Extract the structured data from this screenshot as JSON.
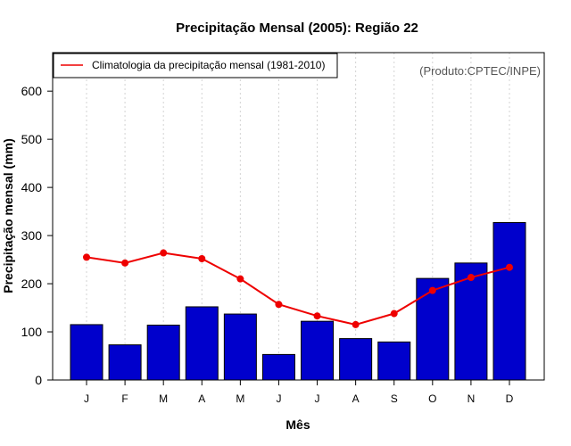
{
  "chart_data": {
    "type": "bar",
    "title": "Precipitação Mensal (2005): Região 22",
    "xlabel": "Mês",
    "ylabel": "Precipitação mensal (mm)",
    "categories": [
      "J",
      "F",
      "M",
      "A",
      "M",
      "J",
      "J",
      "A",
      "S",
      "O",
      "N",
      "D"
    ],
    "ylim": [
      0,
      680
    ],
    "yticks": [
      0,
      100,
      200,
      300,
      400,
      500,
      600
    ],
    "grid": "vertical dotted",
    "series": [
      {
        "name": "Precipitação mensal 2005",
        "type": "bar",
        "color": "#0000cc",
        "values": [
          115,
          73,
          114,
          152,
          137,
          53,
          122,
          86,
          79,
          211,
          243,
          327
        ]
      },
      {
        "name": "Climatologia da precipitação mensal (1981-2010)",
        "type": "line",
        "color": "#ee0000",
        "values": [
          255,
          243,
          264,
          252,
          210,
          157,
          133,
          115,
          138,
          186,
          213,
          234
        ]
      }
    ],
    "legend": {
      "position": "top-left",
      "entries": [
        "Climatologia da precipitação mensal (1981-2010)"
      ]
    },
    "annotation": "(Produto:CPTEC/INPE)"
  }
}
